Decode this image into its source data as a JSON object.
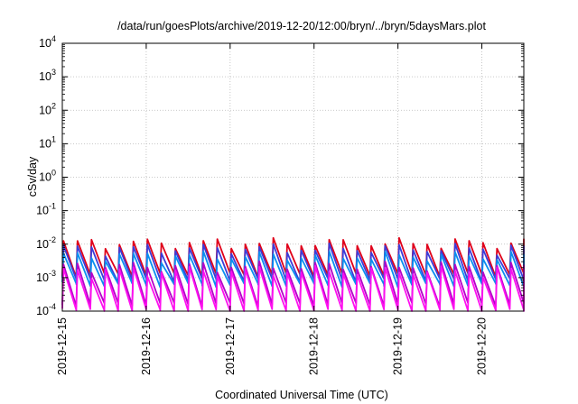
{
  "chart_data": {
    "type": "line",
    "title": "/data/run/goesPlots/archive/2019-12-20/12:00/bryn/../bryn/5daysMars.plot",
    "xlabel": "Coordinated Universal Time (UTC)",
    "ylabel": "cSv/day",
    "yscale": "log",
    "ylim": [
      0.0001,
      10000
    ],
    "xlim": [
      "2019-12-15T00:00",
      "2019-12-20T12:00"
    ],
    "grid": true,
    "legend": "none",
    "x_ticks": [
      "2019-12-15",
      "2019-12-16",
      "2019-12-17",
      "2019-12-18",
      "2019-12-19",
      "2019-12-20"
    ],
    "y_ticks": [
      {
        "value": 0.0001,
        "base": "10",
        "exp": "-4"
      },
      {
        "value": 0.001,
        "base": "10",
        "exp": "-3"
      },
      {
        "value": 0.01,
        "base": "10",
        "exp": "-2"
      },
      {
        "value": 0.1,
        "base": "10",
        "exp": "-1"
      },
      {
        "value": 1,
        "base": "10",
        "exp": "0"
      },
      {
        "value": 10,
        "base": "10",
        "exp": "1"
      },
      {
        "value": 100,
        "base": "10",
        "exp": "2"
      },
      {
        "value": 1000,
        "base": "10",
        "exp": "3"
      },
      {
        "value": 10000,
        "base": "10",
        "exp": "4"
      }
    ],
    "x_start": "2019-12-15T00:00",
    "x_end": "2019-12-20T12:00",
    "cycle_start": "2019-12-15T00:00",
    "cycle_hours": 4.0,
    "series": [
      {
        "color": "#e0001a",
        "peak": 0.011,
        "trough": 0.0013
      },
      {
        "color": "#3c3cd8",
        "peak": 0.0075,
        "trough": 0.0009
      },
      {
        "color": "#0a8ff0",
        "peak": 0.0045,
        "trough": 0.00065
      },
      {
        "color": "#b400c8",
        "peak": 0.0022,
        "trough": 0.00017
      },
      {
        "color": "#ff10f0",
        "peak": 0.0016,
        "trough": 0.00011
      }
    ]
  }
}
